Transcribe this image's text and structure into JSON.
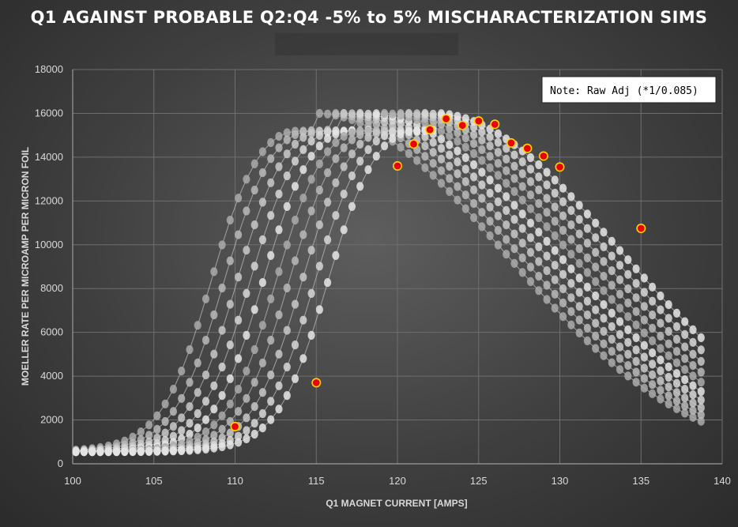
{
  "chart_title": "Q1 AGAINST PROBABLE Q2:Q4 -5% to 5% MISCHARACTERIZATION SIMS",
  "note": "Note: Raw Adj (*1/0.085)",
  "colors": {
    "sim_line": "#bfbfbf",
    "sim_marker": "#e6e6e6",
    "data_fill": "#e8000b",
    "data_edge": "#ffd400",
    "grid": "#6e6e6e"
  },
  "chart_data": {
    "type": "scatter",
    "title": "Q1 AGAINST PROBABLE Q2:Q4 -5% to 5% MISCHARACTERIZATION SIMS",
    "xlabel": "Q1 MAGNET CURRENT [AMPS]",
    "ylabel": "MOELLER RATE PER MICROAMP PER MICRON FOIL",
    "xlim": [
      100,
      140
    ],
    "ylim": [
      0,
      18000
    ],
    "x_ticks": [
      100,
      105,
      110,
      115,
      120,
      125,
      130,
      135,
      140
    ],
    "y_ticks": [
      0,
      2000,
      4000,
      6000,
      8000,
      10000,
      12000,
      14000,
      16000,
      18000
    ],
    "grid": true,
    "sim_curves": {
      "description_peak_shifts": [
        -3.5,
        -2.7,
        -1.9,
        -1.1,
        -0.3,
        0.5,
        1.3,
        2.1,
        2.9,
        3.7
      ],
      "count": 10,
      "x_start": 100.2,
      "x_end": 138.8,
      "peak": 16000,
      "nominal_peak_x": 118.5
    },
    "data_series": {
      "points": [
        {
          "x": 110,
          "y": 1700
        },
        {
          "x": 115,
          "y": 3700
        },
        {
          "x": 120,
          "y": 13600
        },
        {
          "x": 121,
          "y": 14600
        },
        {
          "x": 122,
          "y": 15250
        },
        {
          "x": 123,
          "y": 15750
        },
        {
          "x": 124,
          "y": 15450
        },
        {
          "x": 125,
          "y": 15650
        },
        {
          "x": 126,
          "y": 15500
        },
        {
          "x": 127,
          "y": 14650
        },
        {
          "x": 128,
          "y": 14400
        },
        {
          "x": 129,
          "y": 14050
        },
        {
          "x": 130,
          "y": 13550
        },
        {
          "x": 135,
          "y": 10750
        }
      ]
    }
  }
}
